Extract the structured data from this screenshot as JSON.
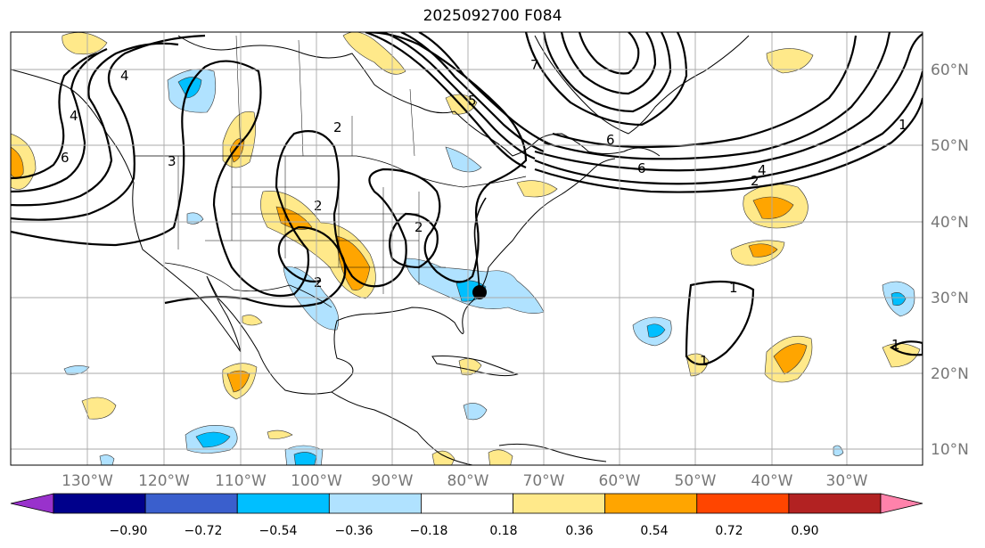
{
  "map": {
    "title": "2025092700 F084",
    "lon_labels": [
      "130°W",
      "120°W",
      "110°W",
      "100°W",
      "90°W",
      "80°W",
      "70°W",
      "60°W",
      "50°W",
      "40°W",
      "30°W"
    ],
    "lat_labels": [
      "60°N",
      "50°N",
      "40°N",
      "30°N",
      "20°N",
      "10°N"
    ],
    "contour_labels": [
      "4",
      "6",
      "3",
      "2",
      "2",
      "4",
      "2",
      "2",
      "5",
      "7",
      "6",
      "6",
      "4",
      "2",
      "1",
      "1",
      "1",
      "1"
    ],
    "marker": "storm-center"
  },
  "colorbar": {
    "ticks": [
      "−0.90",
      "−0.72",
      "−0.54",
      "−0.36",
      "−0.18",
      "0.18",
      "0.36",
      "0.54",
      "0.72",
      "0.90"
    ],
    "colors": [
      "#9932cc",
      "#00008b",
      "#3a5fcd",
      "#00bfff",
      "#b0e2ff",
      "#ffffff",
      "#ffe98a",
      "#ffa500",
      "#ff4500",
      "#b22222",
      "#ff82ab"
    ]
  }
}
